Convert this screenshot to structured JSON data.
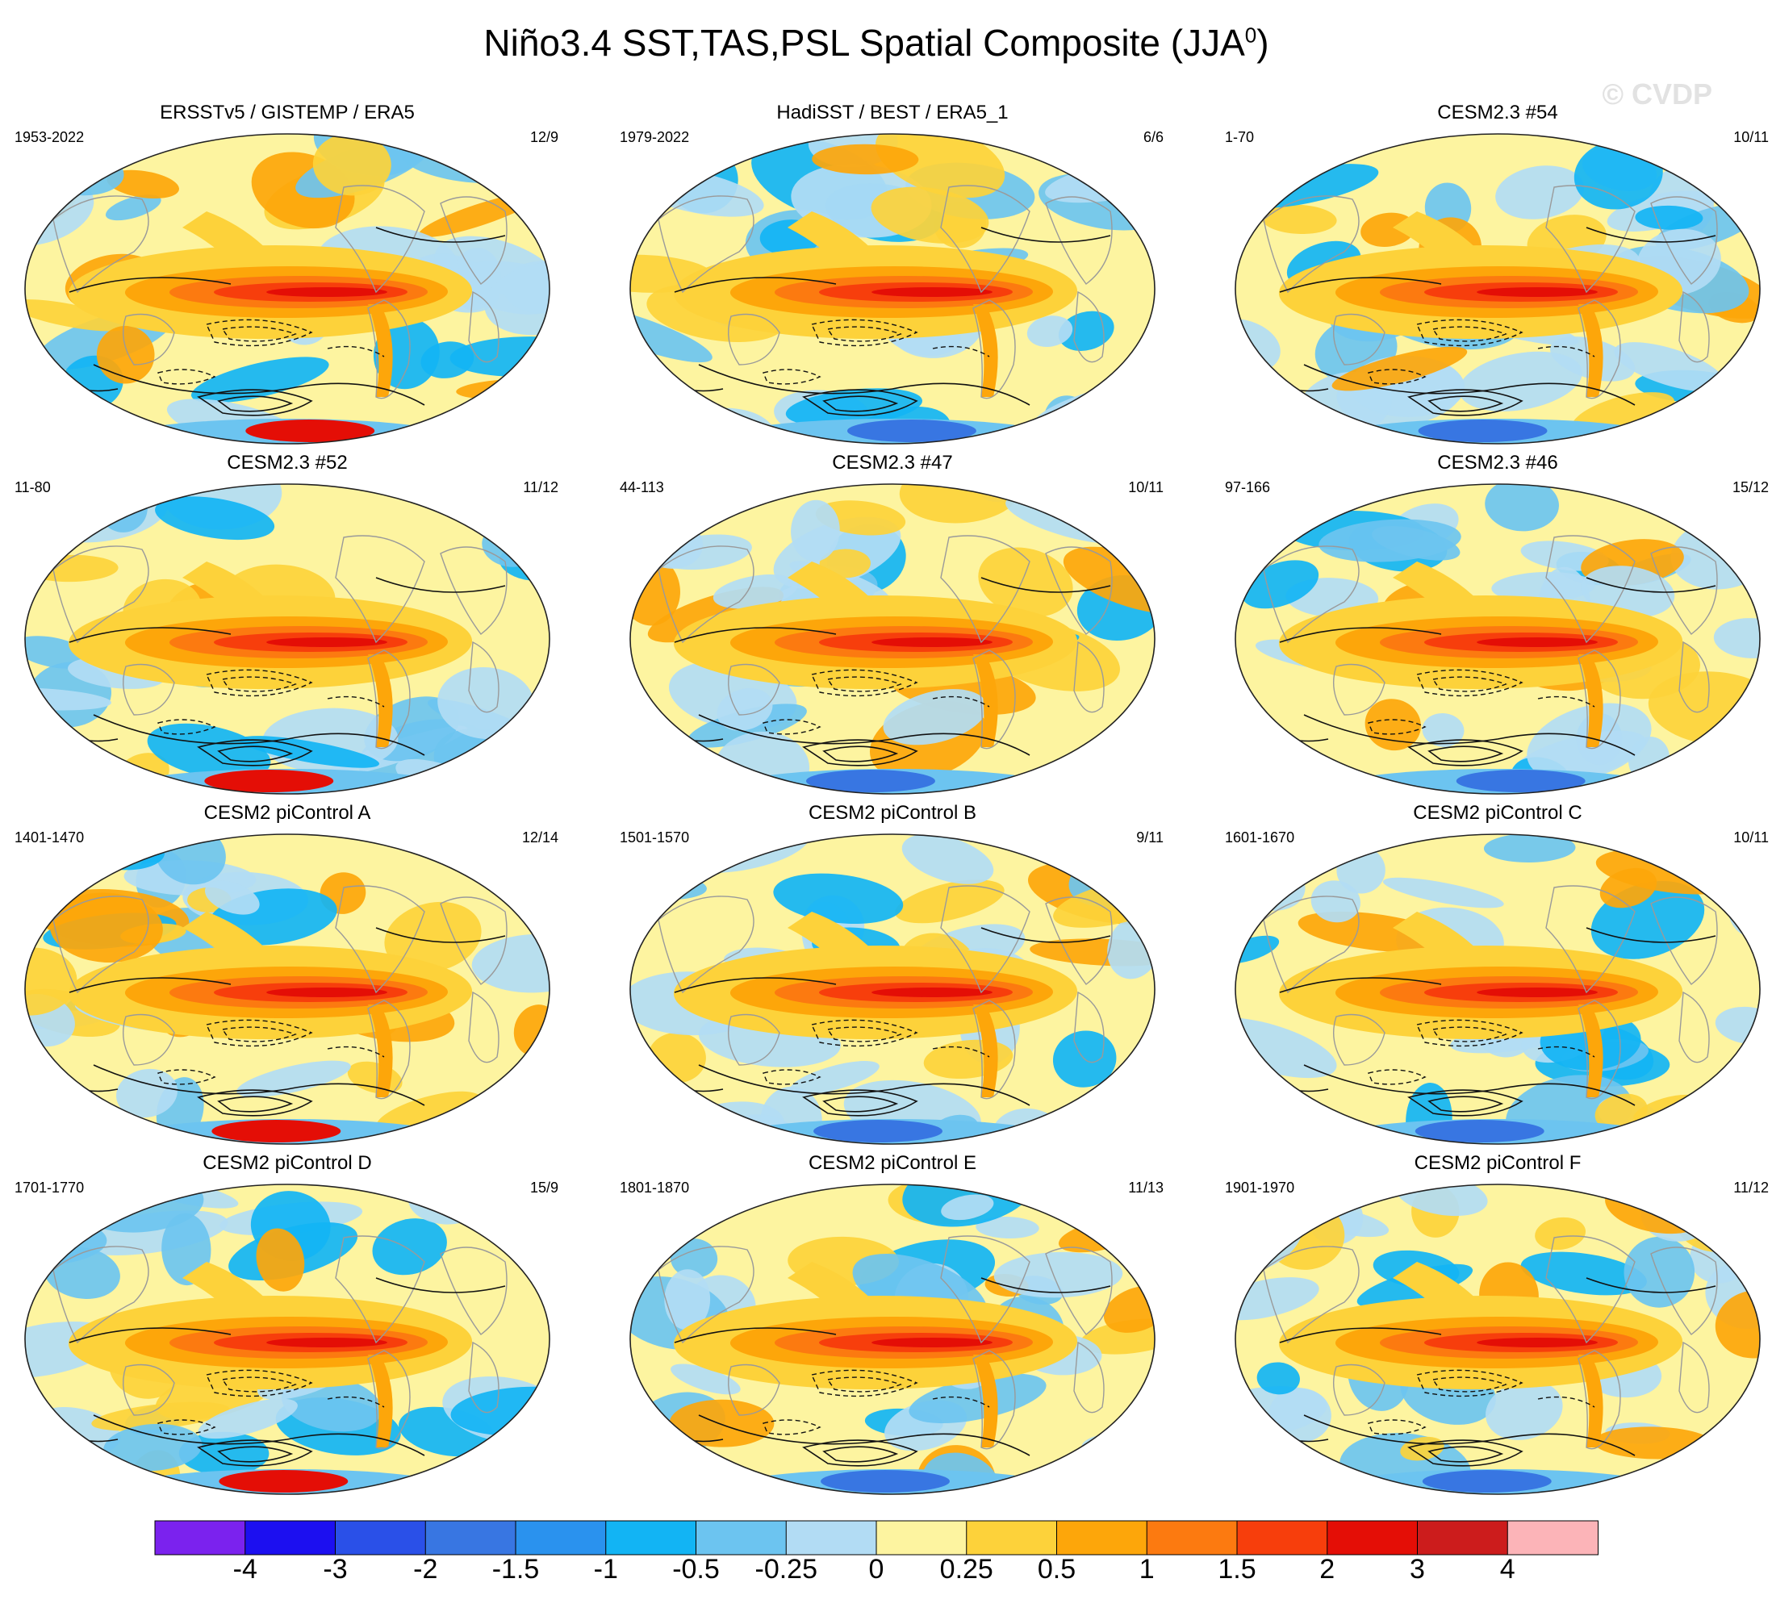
{
  "figure": {
    "title_main": "Niño3.4 SST,TAS,PSL Spatial Composite (JJA",
    "title_sup": "0",
    "title_close": ")",
    "watermark": "© CVDP"
  },
  "panels": [
    {
      "title": "ERSSTv5 / GISTEMP / ERA5",
      "period": "1953-2022",
      "count": "12/9"
    },
    {
      "title": "HadiSST / BEST / ERA5_1",
      "period": "1979-2022",
      "count": "6/6"
    },
    {
      "title": "CESM2.3 #54",
      "period": "1-70",
      "count": "10/11"
    },
    {
      "title": "CESM2.3 #52",
      "period": "11-80",
      "count": "11/12"
    },
    {
      "title": "CESM2.3 #47",
      "period": "44-113",
      "count": "10/11"
    },
    {
      "title": "CESM2.3 #46",
      "period": "97-166",
      "count": "15/12"
    },
    {
      "title": "CESM2 piControl A",
      "period": "1401-1470",
      "count": "12/14"
    },
    {
      "title": "CESM2 piControl B",
      "period": "1501-1570",
      "count": "9/11"
    },
    {
      "title": "CESM2 piControl C",
      "period": "1601-1670",
      "count": "10/11"
    },
    {
      "title": "CESM2 piControl D",
      "period": "1701-1770",
      "count": "15/9"
    },
    {
      "title": "CESM2 piControl E",
      "period": "1801-1870",
      "count": "11/13"
    },
    {
      "title": "CESM2 piControl F",
      "period": "1901-1970",
      "count": "11/12"
    }
  ],
  "colorbar": {
    "labels": [
      "-4",
      "-3",
      "-2",
      "-1.5",
      "-1",
      "-0.5",
      "-0.25",
      "0",
      "0.25",
      "0.5",
      "1",
      "1.5",
      "2",
      "3",
      "4"
    ],
    "colors": [
      "#7b22ee",
      "#1c0ff0",
      "#2a50e8",
      "#3876e2",
      "#2a92ee",
      "#12b4f4",
      "#6cc4f0",
      "#b2dcf4",
      "#fdf4a0",
      "#fdd23a",
      "#fda60a",
      "#fc7a10",
      "#f73e0c",
      "#e40e06",
      "#cc1c1c",
      "#fcb4b8"
    ]
  }
}
